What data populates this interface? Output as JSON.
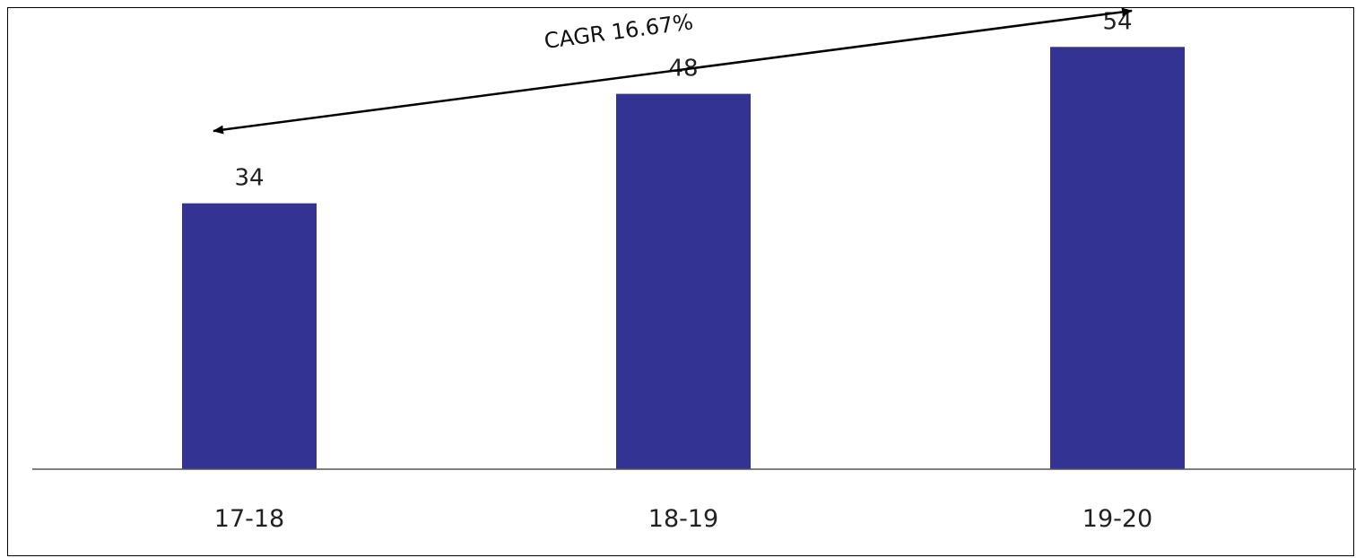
{
  "chart_data": {
    "type": "bar",
    "categories": [
      "17-18",
      "18-19",
      "19-20"
    ],
    "values": [
      34,
      48,
      54
    ],
    "data_labels": [
      "34",
      "48",
      "54"
    ],
    "title": "",
    "xlabel": "",
    "ylabel": "",
    "ylim": [
      0,
      60
    ],
    "grid": false,
    "legend": "none",
    "annotation": {
      "text": "CAGR 16.67%",
      "type": "double-headed-arrow",
      "from_category": "17-18",
      "to_category": "19-20"
    },
    "colors": {
      "bar": "#333394",
      "axis": "#555555",
      "arrow": "#000000"
    }
  }
}
